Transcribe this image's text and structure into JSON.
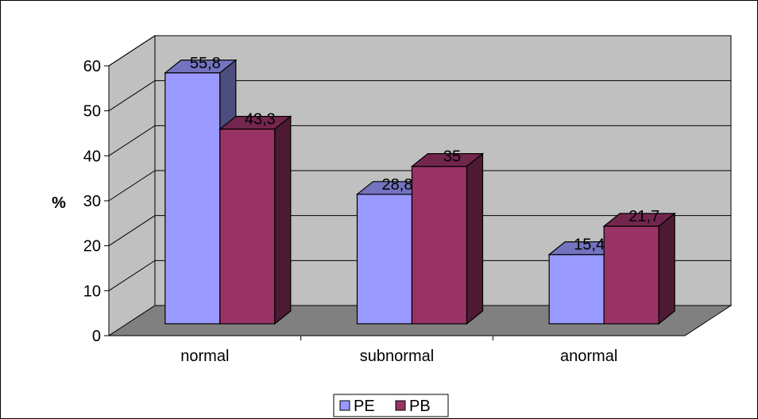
{
  "chart_data": {
    "type": "bar",
    "title": "",
    "xlabel": "",
    "ylabel": "%",
    "ylim": [
      0,
      60
    ],
    "yticks": [
      0,
      10,
      20,
      30,
      40,
      50,
      60
    ],
    "categories": [
      "normal",
      "subnormal",
      "anormal"
    ],
    "series": [
      {
        "name": "PE",
        "values": [
          55.8,
          28.8,
          15.4
        ],
        "labels": [
          "55,8",
          "28,8",
          "15,4"
        ],
        "color": "#9999FF"
      },
      {
        "name": "PB",
        "values": [
          43.3,
          35,
          21.7
        ],
        "labels": [
          "43,3",
          "35",
          "21,7"
        ],
        "color": "#993366"
      }
    ],
    "grid": true,
    "legend_position": "bottom",
    "three_d": true,
    "wall_color": "#C0C0C0",
    "floor_color": "#808080"
  }
}
